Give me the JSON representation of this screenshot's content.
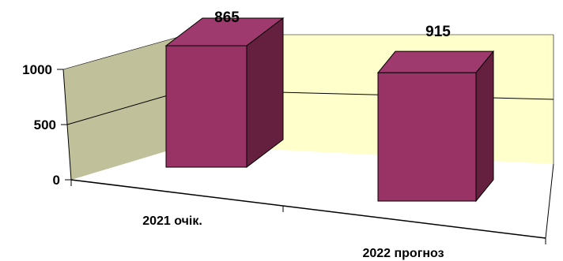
{
  "chart_data": {
    "type": "bar",
    "style": "3d-column",
    "categories": [
      "2021 очік.",
      "2022 прогноз"
    ],
    "values": [
      865,
      915
    ],
    "data_labels": [
      "865",
      "915"
    ],
    "ylim": [
      0,
      1000
    ],
    "yticks": [
      "0",
      "500",
      "1000"
    ],
    "grid": true,
    "legend": false,
    "colors": {
      "bar_front": "#993366",
      "bar_top": "#9e3a6d",
      "bar_side": "#66203f",
      "back_wall": "#ffffcc",
      "side_wall": "#c0c09a",
      "grid_line": "#000000"
    }
  }
}
